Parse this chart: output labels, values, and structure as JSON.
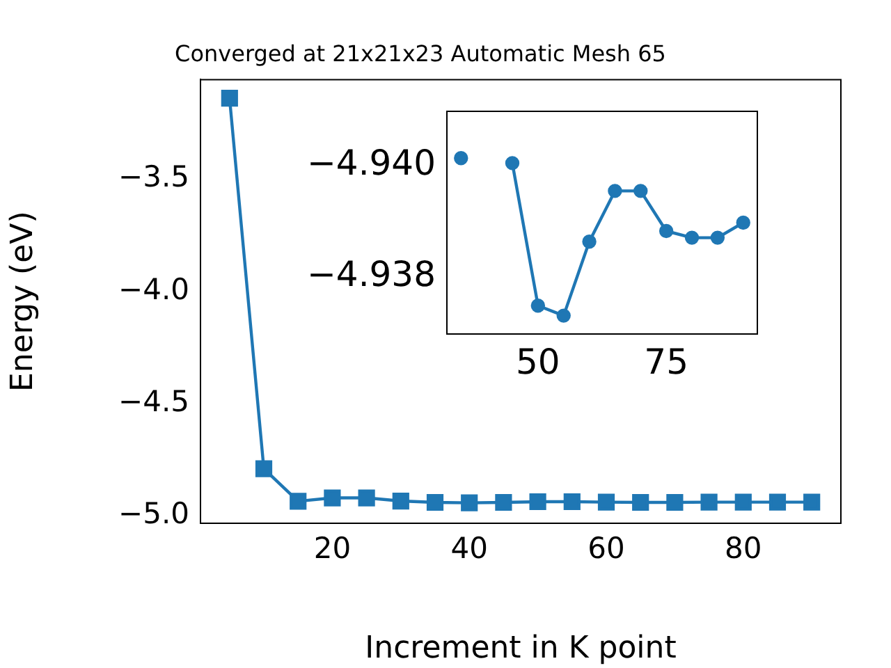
{
  "chart_data": [
    {
      "type": "line",
      "title": "Converged at 21x21x23 Automatic Mesh 65",
      "xlabel": "Increment in K point",
      "ylabel": "Energy (eV)",
      "x": [
        5,
        10,
        15,
        20,
        25,
        30,
        35,
        40,
        45,
        50,
        55,
        60,
        65,
        70,
        75,
        80,
        85,
        90
      ],
      "series": [
        {
          "color": "#1f77b4",
          "values": [
            -3.14,
            -4.79,
            -4.935,
            -4.92,
            -4.92,
            -4.934,
            -4.94,
            -4.942,
            -4.94,
            -4.937,
            -4.937,
            -4.939,
            -4.94,
            -4.94,
            -4.939,
            -4.939,
            -4.939,
            -4.939
          ]
        }
      ],
      "marker": "square",
      "line_style": "solid",
      "grid": false,
      "legend": false,
      "xlim": [
        0.75,
        94.25
      ],
      "ylim": [
        -5.033,
        -3.057
      ],
      "xticks": [
        20,
        40,
        60,
        80
      ],
      "yticks": [
        {
          "value": -5.0,
          "label": "−5.0"
        },
        {
          "value": -4.5,
          "label": "−4.5"
        },
        {
          "value": -4.0,
          "label": "−4.0"
        },
        {
          "value": -3.5,
          "label": "−3.5"
        }
      ]
    },
    {
      "type": "line",
      "x": [
        35,
        40,
        45,
        50,
        55,
        60,
        65,
        70,
        75,
        80,
        85,
        90
      ],
      "series": [
        {
          "color": "#1f77b4",
          "values": [
            -4.94014,
            null,
            -4.94005,
            -4.93749,
            -4.93731,
            -4.93864,
            -4.93955,
            -4.93955,
            -4.93883,
            -4.93871,
            -4.93871,
            -4.93898
          ]
        }
      ],
      "marker": "circle",
      "line_style": "solid",
      "grid": false,
      "legend": false,
      "xlim": [
        32.25,
        92.75
      ],
      "ylim": [
        -4.93698,
        -4.94098
      ],
      "xticks": [
        50,
        75
      ],
      "yticks": [
        {
          "value": -4.94,
          "label": "−4.940"
        },
        {
          "value": -4.938,
          "label": "−4.938"
        }
      ]
    }
  ]
}
